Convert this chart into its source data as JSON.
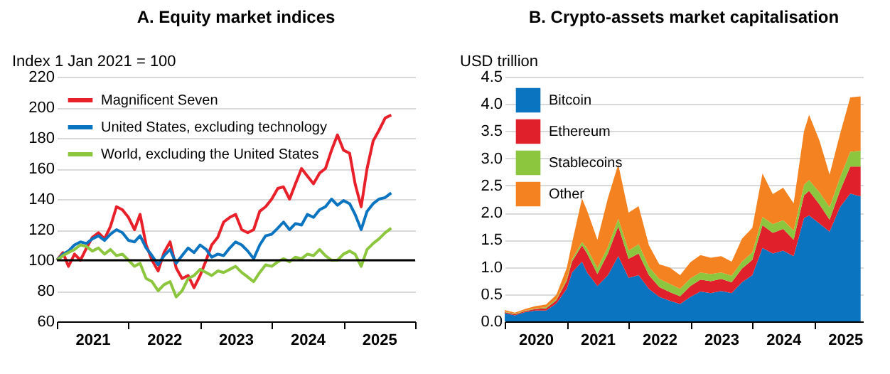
{
  "chart_data": [
    {
      "type": "line",
      "title": "A. Equity market indices",
      "ylabel": "Index 1 Jan 2021 = 100",
      "x": [
        "2021-01",
        "2021-02",
        "2021-03",
        "2021-04",
        "2021-05",
        "2021-06",
        "2021-07",
        "2021-08",
        "2021-09",
        "2021-10",
        "2021-11",
        "2021-12",
        "2022-01",
        "2022-02",
        "2022-03",
        "2022-04",
        "2022-05",
        "2022-06",
        "2022-07",
        "2022-08",
        "2022-09",
        "2022-10",
        "2022-11",
        "2022-12",
        "2023-01",
        "2023-02",
        "2023-03",
        "2023-04",
        "2023-05",
        "2023-06",
        "2023-07",
        "2023-08",
        "2023-09",
        "2023-10",
        "2023-11",
        "2023-12",
        "2024-01",
        "2024-02",
        "2024-03",
        "2024-04",
        "2024-05",
        "2024-06",
        "2024-07",
        "2024-08",
        "2024-09",
        "2024-10",
        "2024-11",
        "2024-12",
        "2025-01",
        "2025-02",
        "2025-03",
        "2025-04",
        "2025-05",
        "2025-06",
        "2025-07",
        "2025-08",
        "2025-09"
      ],
      "series": [
        {
          "name": "Magnificent Seven",
          "color": "#e8202a",
          "values": [
            100,
            105,
            96,
            104,
            100,
            108,
            115,
            118,
            114,
            122,
            135,
            133,
            128,
            120,
            130,
            110,
            100,
            93,
            105,
            112,
            95,
            88,
            90,
            82,
            90,
            100,
            110,
            115,
            125,
            128,
            130,
            120,
            118,
            120,
            132,
            135,
            140,
            147,
            148,
            140,
            150,
            160,
            155,
            150,
            157,
            160,
            172,
            182,
            172,
            170,
            150,
            135,
            160,
            178,
            185,
            193,
            195
          ]
        },
        {
          "name": "United States, excluding technology",
          "color": "#0a74c0",
          "values": [
            100,
            104,
            106,
            110,
            112,
            111,
            114,
            116,
            113,
            117,
            120,
            118,
            113,
            112,
            116,
            108,
            103,
            97,
            103,
            107,
            98,
            103,
            108,
            105,
            110,
            107,
            102,
            104,
            103,
            108,
            112,
            110,
            106,
            101,
            110,
            116,
            117,
            121,
            125,
            120,
            124,
            123,
            130,
            128,
            133,
            135,
            140,
            136,
            139,
            137,
            130,
            120,
            132,
            137,
            140,
            141,
            144
          ]
        },
        {
          "name": "World, excluding the United States",
          "color": "#8cc63f",
          "values": [
            100,
            103,
            105,
            107,
            110,
            109,
            106,
            108,
            104,
            107,
            103,
            104,
            100,
            96,
            98,
            88,
            86,
            80,
            84,
            86,
            76,
            80,
            88,
            90,
            94,
            92,
            90,
            93,
            92,
            94,
            96,
            92,
            89,
            86,
            92,
            97,
            96,
            99,
            101,
            99,
            102,
            101,
            104,
            103,
            107,
            103,
            100,
            100,
            104,
            106,
            104,
            96,
            107,
            111,
            114,
            118,
            121
          ]
        }
      ],
      "xlim": [
        "2021-01-01",
        "2026-01-01"
      ],
      "xticks": [
        {
          "value": "2021-01-01",
          "label": null
        },
        {
          "value": "2021-07-01",
          "label": "2021"
        },
        {
          "value": "2022-01-01",
          "label": null
        },
        {
          "value": "2022-07-01",
          "label": "2022"
        },
        {
          "value": "2023-01-01",
          "label": null
        },
        {
          "value": "2023-07-01",
          "label": "2023"
        },
        {
          "value": "2024-01-01",
          "label": null
        },
        {
          "value": "2024-07-01",
          "label": "2024"
        },
        {
          "value": "2025-01-01",
          "label": null
        },
        {
          "value": "2025-07-01",
          "label": "2025"
        },
        {
          "value": "2026-01-01",
          "label": null
        }
      ],
      "ylim": [
        60,
        220
      ],
      "yticks": [
        60,
        80,
        100,
        120,
        140,
        160,
        180,
        200,
        220
      ],
      "ref_lines": [
        {
          "axis": "y",
          "value": 100,
          "color": "#000000"
        }
      ],
      "grid": "y",
      "legend": "top left",
      "line_style": "solid",
      "marker": "none"
    },
    {
      "type": "area",
      "stacked": true,
      "title": "B. Crypto-assets market capitalisation",
      "ylabel": "USD trillion",
      "x": [
        "2020-01",
        "2020-03",
        "2020-05",
        "2020-07",
        "2020-09",
        "2020-11",
        "2021-01",
        "2021-02",
        "2021-04",
        "2021-05",
        "2021-07",
        "2021-09",
        "2021-11",
        "2022-01",
        "2022-03",
        "2022-05",
        "2022-07",
        "2022-09",
        "2022-11",
        "2023-01",
        "2023-03",
        "2023-05",
        "2023-07",
        "2023-09",
        "2023-11",
        "2024-01",
        "2024-03",
        "2024-05",
        "2024-07",
        "2024-09",
        "2024-11",
        "2024-12",
        "2025-02",
        "2025-04",
        "2025-06",
        "2025-08",
        "2025-10"
      ],
      "series": [
        {
          "name": "Bitcoin",
          "color": "#0a74c0",
          "values": [
            0.15,
            0.11,
            0.17,
            0.2,
            0.2,
            0.33,
            0.6,
            0.9,
            1.1,
            0.9,
            0.65,
            0.85,
            1.2,
            0.8,
            0.85,
            0.6,
            0.45,
            0.38,
            0.32,
            0.45,
            0.55,
            0.52,
            0.56,
            0.52,
            0.72,
            0.85,
            1.35,
            1.25,
            1.3,
            1.2,
            1.9,
            1.95,
            1.8,
            1.65,
            2.1,
            2.35,
            2.3
          ]
        },
        {
          "name": "Ethereum",
          "color": "#e0202a",
          "values": [
            0.02,
            0.02,
            0.02,
            0.03,
            0.04,
            0.06,
            0.15,
            0.2,
            0.3,
            0.35,
            0.22,
            0.4,
            0.55,
            0.35,
            0.4,
            0.25,
            0.18,
            0.16,
            0.14,
            0.2,
            0.22,
            0.22,
            0.22,
            0.2,
            0.25,
            0.28,
            0.42,
            0.38,
            0.4,
            0.3,
            0.42,
            0.45,
            0.35,
            0.22,
            0.3,
            0.5,
            0.55
          ]
        },
        {
          "name": "Stablecoins",
          "color": "#8cc63f",
          "values": [
            0.01,
            0.01,
            0.01,
            0.01,
            0.02,
            0.02,
            0.03,
            0.04,
            0.06,
            0.09,
            0.11,
            0.12,
            0.14,
            0.15,
            0.17,
            0.15,
            0.15,
            0.15,
            0.14,
            0.14,
            0.13,
            0.13,
            0.12,
            0.12,
            0.13,
            0.14,
            0.15,
            0.16,
            0.16,
            0.17,
            0.19,
            0.2,
            0.22,
            0.23,
            0.24,
            0.27,
            0.29
          ]
        },
        {
          "name": "Other",
          "color": "#f58220",
          "values": [
            0.03,
            0.02,
            0.03,
            0.04,
            0.05,
            0.08,
            0.2,
            0.3,
            0.8,
            0.7,
            0.52,
            0.9,
            1.0,
            0.7,
            0.7,
            0.4,
            0.27,
            0.3,
            0.25,
            0.3,
            0.32,
            0.3,
            0.3,
            0.26,
            0.42,
            0.45,
            0.8,
            0.55,
            0.6,
            0.5,
            0.99,
            1.2,
            0.95,
            0.6,
            0.8,
            1.0,
            1.0
          ]
        }
      ],
      "xlim": [
        "2020-01-01",
        "2025-10-15"
      ],
      "xticks": [
        {
          "value": "2020-01-01",
          "label": null
        },
        {
          "value": "2020-07-01",
          "label": "2020"
        },
        {
          "value": "2021-01-01",
          "label": null
        },
        {
          "value": "2021-07-01",
          "label": "2021"
        },
        {
          "value": "2022-01-01",
          "label": null
        },
        {
          "value": "2022-07-01",
          "label": "2022"
        },
        {
          "value": "2023-01-01",
          "label": null
        },
        {
          "value": "2023-07-01",
          "label": "2023"
        },
        {
          "value": "2024-01-01",
          "label": null
        },
        {
          "value": "2024-07-01",
          "label": "2024"
        },
        {
          "value": "2025-01-01",
          "label": null
        },
        {
          "value": "2025-07-01",
          "label": "2025"
        }
      ],
      "ylim": [
        0,
        4.5
      ],
      "yticks": [
        {
          "value": 0,
          "label": "0.0"
        },
        {
          "value": 0.5,
          "label": "0.5"
        },
        {
          "value": 1,
          "label": "1.0"
        },
        {
          "value": 1.5,
          "label": "1.5"
        },
        {
          "value": 2,
          "label": "2.0"
        },
        {
          "value": 2.5,
          "label": "2.5"
        },
        {
          "value": 3,
          "label": "3.0"
        },
        {
          "value": 3.5,
          "label": "3.5"
        },
        {
          "value": 4,
          "label": "4.0"
        },
        {
          "value": 4.5,
          "label": "4.5"
        }
      ],
      "grid": "y",
      "legend": "top left"
    }
  ]
}
